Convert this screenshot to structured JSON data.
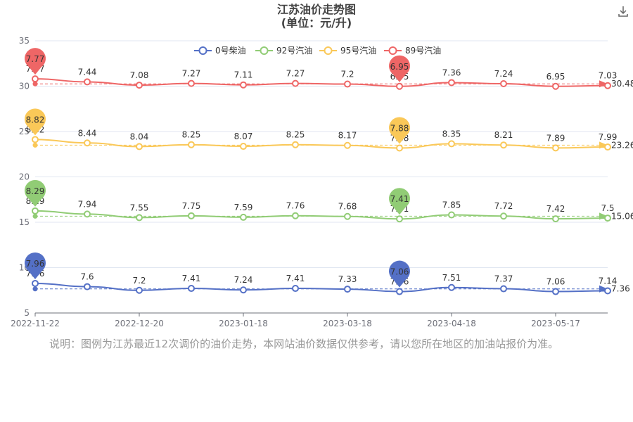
{
  "header": {
    "title": "江苏油价走势图",
    "subtitle": "(单位：元/升)",
    "download_icon": "download-icon"
  },
  "note": "说明：图例为江苏最近12次调价的油价走势，本网站油价数据仅供参考，请以您所在地区的加油站报价为准。",
  "chart_data": {
    "type": "line",
    "title": "江苏油价走势图",
    "subtitle": "(单位：元/升)",
    "x_tick_labels": [
      "2022-11-22",
      "2022-12-20",
      "2023-01-18",
      "2023-03-18",
      "2023-04-18",
      "2023-05-17"
    ],
    "x_tick_indices": [
      0,
      2,
      4,
      6,
      8,
      10
    ],
    "y_ticks": [
      5,
      10,
      15,
      20,
      25,
      30,
      35
    ],
    "ylim": [
      5,
      35
    ],
    "grid": true,
    "legend_position": "top-center",
    "series": [
      {
        "name": "0号柴油",
        "color": "#5470c6",
        "offset": 0.3,
        "values": [
          7.96,
          7.6,
          7.2,
          7.41,
          7.24,
          7.41,
          7.33,
          7.06,
          7.51,
          7.37,
          7.06,
          7.14
        ],
        "max_label": "7.96",
        "min_label": "7.06",
        "avg_label": "7.36"
      },
      {
        "name": "92号汽油",
        "color": "#91cc75",
        "offset": 7.96,
        "values": [
          8.29,
          7.94,
          7.55,
          7.75,
          7.59,
          7.76,
          7.68,
          7.41,
          7.85,
          7.72,
          7.42,
          7.5
        ],
        "max_label": "8.29",
        "min_label": "7.41",
        "avg_label": "15.06"
      },
      {
        "name": "95号汽油",
        "color": "#fac858",
        "offset": 15.3,
        "values": [
          8.82,
          8.44,
          8.04,
          8.25,
          8.07,
          8.25,
          8.17,
          7.88,
          8.35,
          8.21,
          7.89,
          7.99
        ],
        "max_label": "8.82",
        "min_label": "7.88",
        "avg_label": "23.26"
      },
      {
        "name": "89号汽油",
        "color": "#ee6666",
        "offset": 23.03,
        "values": [
          7.77,
          7.44,
          7.08,
          7.27,
          7.11,
          7.27,
          7.2,
          6.95,
          7.36,
          7.24,
          6.95,
          7.03
        ],
        "max_label": "7.77",
        "min_label": "6.95",
        "avg_label": "30.48"
      }
    ]
  }
}
